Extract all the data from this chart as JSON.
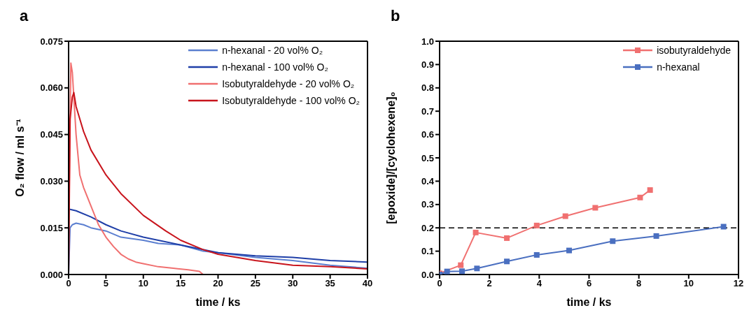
{
  "chart_data": [
    {
      "type": "line",
      "title": "a",
      "xlabel": "time / ks",
      "ylabel": "O₂ flow / ml s⁻¹",
      "xlim": [
        0,
        40
      ],
      "xticks": [
        0,
        5,
        10,
        15,
        20,
        25,
        30,
        35,
        40
      ],
      "ylim": [
        0,
        0.075
      ],
      "yticks": [
        {
          "value": 0,
          "label": "0.000"
        },
        {
          "value": 0.015,
          "label": "0.015"
        },
        {
          "value": 0.03,
          "label": "0.030"
        },
        {
          "value": 0.045,
          "label": "0.045"
        },
        {
          "value": 0.06,
          "label": "0.060"
        },
        {
          "value": 0.075,
          "label": "0.075"
        }
      ],
      "legend": "top right",
      "marker": "none",
      "line_style": "solid",
      "series": [
        {
          "name": "n-hexanal - 20 vol% O₂",
          "color": "#5b7fd0",
          "x": [
            0,
            0.2,
            0.5,
            1,
            2,
            3,
            4,
            5,
            7,
            10,
            12,
            15,
            18,
            20,
            25,
            30,
            35,
            40
          ],
          "values": [
            0,
            0.015,
            0.016,
            0.0165,
            0.016,
            0.015,
            0.0145,
            0.014,
            0.012,
            0.011,
            0.01,
            0.0095,
            0.0075,
            0.007,
            0.0055,
            0.0045,
            0.003,
            0.002
          ]
        },
        {
          "name": "n-hexanal - 100 vol% O₂",
          "color": "#1f3fa8",
          "x": [
            0.1,
            1,
            3,
            5,
            7,
            10,
            15,
            20,
            25,
            30,
            35,
            40
          ],
          "values": [
            0.021,
            0.0205,
            0.0185,
            0.016,
            0.014,
            0.012,
            0.0095,
            0.007,
            0.006,
            0.0055,
            0.0045,
            0.004
          ]
        },
        {
          "name": "Isobutyraldehyde - 20 vol% O₂",
          "color": "#f07070",
          "x": [
            0,
            0.1,
            0.3,
            0.5,
            1,
            1.5,
            2,
            3,
            4,
            5,
            6,
            7,
            8,
            9,
            10,
            12,
            14,
            16,
            17.5,
            18,
            18.6
          ],
          "values": [
            0,
            0.03,
            0.068,
            0.065,
            0.045,
            0.032,
            0.028,
            0.022,
            0.016,
            0.012,
            0.009,
            0.0065,
            0.005,
            0.004,
            0.0035,
            0.0025,
            0.002,
            0.0015,
            0.001,
            0,
            0
          ]
        },
        {
          "name": "Isobutyraldehyde - 100 vol% O₂",
          "color": "#c8141c",
          "x": [
            0,
            0.2,
            0.5,
            0.7,
            1,
            2,
            3,
            5,
            7,
            10,
            13,
            15,
            18,
            20,
            25,
            30,
            35,
            40
          ],
          "values": [
            0,
            0.05,
            0.057,
            0.0585,
            0.054,
            0.046,
            0.04,
            0.032,
            0.026,
            0.019,
            0.014,
            0.011,
            0.008,
            0.0065,
            0.0045,
            0.003,
            0.0025,
            0.0018
          ]
        }
      ]
    },
    {
      "type": "line",
      "title": "b",
      "xlabel": "time / ks",
      "ylabel": "[epoxide]/[cyclohexene]₀",
      "xlim": [
        0,
        12
      ],
      "xticks": [
        0,
        2,
        4,
        6,
        8,
        10,
        12
      ],
      "ylim": [
        0,
        1
      ],
      "yticks": [
        {
          "value": 0,
          "label": "0.0"
        },
        {
          "value": 0.1,
          "label": "0.1"
        },
        {
          "value": 0.2,
          "label": "0.2"
        },
        {
          "value": 0.3,
          "label": "0.3"
        },
        {
          "value": 0.4,
          "label": "0.4"
        },
        {
          "value": 0.5,
          "label": "0.5"
        },
        {
          "value": 0.6,
          "label": "0.6"
        },
        {
          "value": 0.7,
          "label": "0.7"
        },
        {
          "value": 0.8,
          "label": "0.8"
        },
        {
          "value": 0.9,
          "label": "0.9"
        },
        {
          "value": 1,
          "label": "1.0"
        }
      ],
      "legend": "top right",
      "marker": "square",
      "line_style": "solid",
      "ref_lines": [
        {
          "axis": "y",
          "value": 0.2,
          "color": "#000000",
          "line_style": "dashed"
        }
      ],
      "series": [
        {
          "name": "isobutyraldehyde",
          "color": "#f07070",
          "x": [
            0,
            0.3,
            0.85,
            1.45,
            2.7,
            3.9,
            5.05,
            6.25,
            8.05,
            8.45
          ],
          "values": [
            0.005,
            null,
            0.04,
            0.18,
            0.156,
            0.21,
            0.25,
            0.286,
            0.33,
            0.362
          ]
        },
        {
          "name": "n-hexanal",
          "color": "#4a6fc0",
          "x": [
            0,
            0.3,
            0.9,
            1.5,
            2.7,
            3.9,
            5.2,
            6.95,
            8.7,
            11.4
          ],
          "values": [
            0,
            0.013,
            0.014,
            0.026,
            0.056,
            0.084,
            0.103,
            0.143,
            0.165,
            0.205
          ]
        }
      ]
    }
  ]
}
